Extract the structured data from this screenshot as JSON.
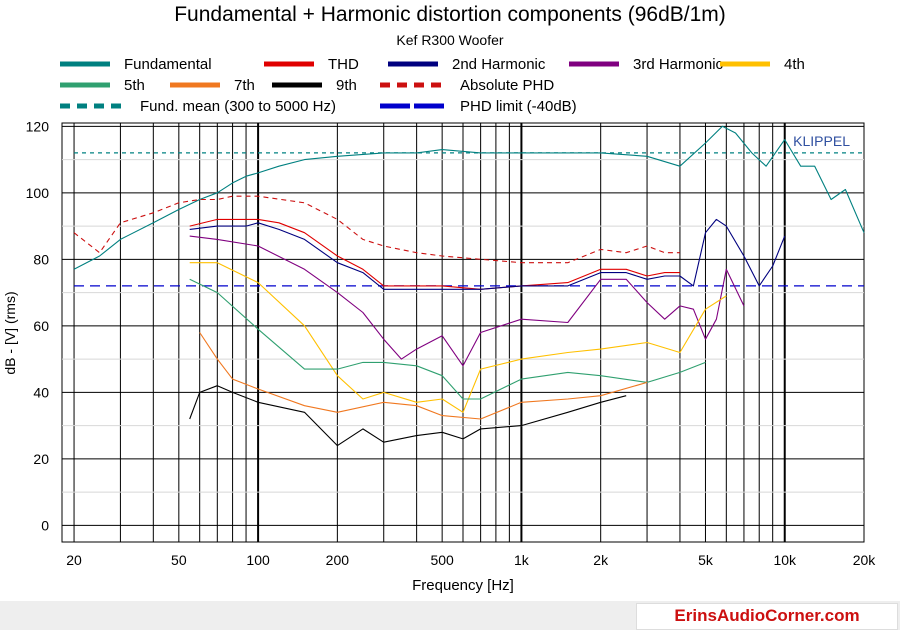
{
  "chart_data": {
    "type": "line",
    "title": "Fundamental + Harmonic distortion components (96dB/1m)",
    "subtitle": "Kef R300 Woofer",
    "xlabel": "Frequency [Hz]",
    "ylabel": "dB - [V] (rms)",
    "xscale": "log",
    "xlim": [
      18,
      20000
    ],
    "ylim": [
      -5,
      121
    ],
    "xticks": [
      {
        "value": 20,
        "label": "20"
      },
      {
        "value": 50,
        "label": "50"
      },
      {
        "value": 100,
        "label": "100"
      },
      {
        "value": 200,
        "label": "200"
      },
      {
        "value": 500,
        "label": "500"
      },
      {
        "value": 1000,
        "label": "1k"
      },
      {
        "value": 2000,
        "label": "2k"
      },
      {
        "value": 5000,
        "label": "5k"
      },
      {
        "value": 10000,
        "label": "10k"
      },
      {
        "value": 20000,
        "label": "20k"
      }
    ],
    "yticks": [
      {
        "value": 0,
        "label": "0"
      },
      {
        "value": 20,
        "label": "20"
      },
      {
        "value": 40,
        "label": "40"
      },
      {
        "value": 60,
        "label": "60"
      },
      {
        "value": 80,
        "label": "80"
      },
      {
        "value": 100,
        "label": "100"
      },
      {
        "value": 120,
        "label": "120"
      }
    ],
    "grid": true,
    "watermark": "KLIPPEL",
    "legend_position": "top",
    "series": [
      {
        "name": "Fundamental",
        "color": "#008080",
        "style": "solid",
        "points": [
          [
            20,
            77
          ],
          [
            25,
            81
          ],
          [
            30,
            86
          ],
          [
            40,
            91
          ],
          [
            50,
            95
          ],
          [
            60,
            98
          ],
          [
            70,
            100
          ],
          [
            80,
            103
          ],
          [
            90,
            105
          ],
          [
            100,
            106
          ],
          [
            120,
            108
          ],
          [
            150,
            110
          ],
          [
            200,
            111
          ],
          [
            300,
            112
          ],
          [
            400,
            112
          ],
          [
            500,
            113
          ],
          [
            700,
            112
          ],
          [
            1000,
            112
          ],
          [
            1500,
            112
          ],
          [
            2000,
            112
          ],
          [
            3000,
            111
          ],
          [
            4000,
            108
          ],
          [
            5000,
            115
          ],
          [
            5800,
            120
          ],
          [
            6500,
            118
          ],
          [
            7500,
            112
          ],
          [
            8500,
            108
          ],
          [
            10000,
            116
          ],
          [
            11500,
            108
          ],
          [
            13000,
            108
          ],
          [
            15000,
            98
          ],
          [
            17000,
            101
          ],
          [
            20000,
            88
          ]
        ]
      },
      {
        "name": "THD",
        "color": "#e00000",
        "style": "solid",
        "points": [
          [
            55,
            90
          ],
          [
            70,
            92
          ],
          [
            90,
            92
          ],
          [
            100,
            92
          ],
          [
            120,
            91
          ],
          [
            150,
            88
          ],
          [
            200,
            81
          ],
          [
            250,
            77
          ],
          [
            300,
            72
          ],
          [
            400,
            72
          ],
          [
            500,
            72
          ],
          [
            700,
            71
          ],
          [
            1000,
            72
          ],
          [
            1500,
            73
          ],
          [
            2000,
            77
          ],
          [
            2500,
            77
          ],
          [
            3000,
            75
          ],
          [
            3500,
            76
          ],
          [
            4000,
            76
          ]
        ]
      },
      {
        "name": "2nd Harmonic",
        "color": "#00007f",
        "style": "solid",
        "points": [
          [
            55,
            89
          ],
          [
            70,
            90
          ],
          [
            90,
            90
          ],
          [
            100,
            91
          ],
          [
            120,
            89
          ],
          [
            150,
            86
          ],
          [
            200,
            79
          ],
          [
            250,
            76
          ],
          [
            300,
            71
          ],
          [
            400,
            71
          ],
          [
            500,
            71
          ],
          [
            700,
            71
          ],
          [
            1000,
            72
          ],
          [
            1500,
            72
          ],
          [
            2000,
            76
          ],
          [
            2500,
            76
          ],
          [
            3000,
            74
          ],
          [
            3500,
            75
          ],
          [
            4000,
            75
          ],
          [
            4500,
            72
          ],
          [
            5000,
            88
          ],
          [
            5500,
            92
          ],
          [
            6000,
            90
          ],
          [
            7000,
            81
          ],
          [
            8000,
            72
          ],
          [
            9000,
            78
          ],
          [
            10000,
            87
          ]
        ]
      },
      {
        "name": "3rd Harmonic",
        "color": "#800080",
        "style": "solid",
        "points": [
          [
            55,
            87
          ],
          [
            70,
            86
          ],
          [
            100,
            84
          ],
          [
            150,
            77
          ],
          [
            200,
            70
          ],
          [
            250,
            64
          ],
          [
            300,
            56
          ],
          [
            350,
            50
          ],
          [
            400,
            53
          ],
          [
            500,
            57
          ],
          [
            600,
            48
          ],
          [
            700,
            58
          ],
          [
            1000,
            62
          ],
          [
            1500,
            61
          ],
          [
            2000,
            74
          ],
          [
            2500,
            74
          ],
          [
            3000,
            67
          ],
          [
            3500,
            62
          ],
          [
            4000,
            66
          ],
          [
            4500,
            65
          ],
          [
            5000,
            56
          ],
          [
            5500,
            62
          ],
          [
            6000,
            77
          ],
          [
            7000,
            66
          ]
        ]
      },
      {
        "name": "4th",
        "color": "#ffc000",
        "style": "solid",
        "points": [
          [
            55,
            79
          ],
          [
            70,
            79
          ],
          [
            100,
            73
          ],
          [
            150,
            60
          ],
          [
            200,
            45
          ],
          [
            250,
            38
          ],
          [
            300,
            40
          ],
          [
            400,
            37
          ],
          [
            500,
            38
          ],
          [
            600,
            34
          ],
          [
            700,
            47
          ],
          [
            1000,
            50
          ],
          [
            1500,
            52
          ],
          [
            2000,
            53
          ],
          [
            3000,
            55
          ],
          [
            4000,
            52
          ],
          [
            5000,
            65
          ],
          [
            6000,
            69
          ]
        ]
      },
      {
        "name": "5th",
        "color": "#30a070",
        "style": "solid",
        "points": [
          [
            55,
            74
          ],
          [
            70,
            70
          ],
          [
            100,
            59
          ],
          [
            150,
            47
          ],
          [
            200,
            47
          ],
          [
            250,
            49
          ],
          [
            300,
            49
          ],
          [
            400,
            48
          ],
          [
            500,
            45
          ],
          [
            600,
            38
          ],
          [
            700,
            38
          ],
          [
            1000,
            44
          ],
          [
            1500,
            46
          ],
          [
            2000,
            45
          ],
          [
            3000,
            43
          ],
          [
            4000,
            46
          ],
          [
            5000,
            49
          ]
        ]
      },
      {
        "name": "7th",
        "color": "#f07820",
        "style": "solid",
        "points": [
          [
            60,
            58
          ],
          [
            70,
            50
          ],
          [
            80,
            44
          ],
          [
            100,
            41
          ],
          [
            150,
            36
          ],
          [
            200,
            34
          ],
          [
            300,
            37
          ],
          [
            400,
            36
          ],
          [
            500,
            33
          ],
          [
            700,
            32
          ],
          [
            1000,
            37
          ],
          [
            1500,
            38
          ],
          [
            2000,
            39
          ],
          [
            3000,
            43
          ]
        ]
      },
      {
        "name": "9th",
        "color": "#000000",
        "style": "solid",
        "points": [
          [
            55,
            32
          ],
          [
            60,
            40
          ],
          [
            70,
            42
          ],
          [
            80,
            40
          ],
          [
            100,
            37
          ],
          [
            150,
            34
          ],
          [
            200,
            24
          ],
          [
            250,
            29
          ],
          [
            300,
            25
          ],
          [
            400,
            27
          ],
          [
            500,
            28
          ],
          [
            600,
            26
          ],
          [
            700,
            29
          ],
          [
            1000,
            30
          ],
          [
            1500,
            34
          ],
          [
            2000,
            37
          ],
          [
            2500,
            39
          ]
        ]
      },
      {
        "name": "Absolute PHD",
        "color": "#cc1010",
        "style": "dashed",
        "points": [
          [
            20,
            88
          ],
          [
            25,
            82
          ],
          [
            30,
            91
          ],
          [
            40,
            94
          ],
          [
            50,
            97
          ],
          [
            60,
            98
          ],
          [
            70,
            98
          ],
          [
            80,
            99
          ],
          [
            100,
            99
          ],
          [
            150,
            97
          ],
          [
            200,
            92
          ],
          [
            250,
            86
          ],
          [
            300,
            84
          ],
          [
            400,
            82
          ],
          [
            500,
            81
          ],
          [
            700,
            80
          ],
          [
            1000,
            79
          ],
          [
            1500,
            79
          ],
          [
            2000,
            83
          ],
          [
            2500,
            82
          ],
          [
            3000,
            84
          ],
          [
            3500,
            82
          ],
          [
            4000,
            82
          ]
        ]
      },
      {
        "name": "Fund. mean (300 to 5000 Hz)",
        "color": "#008080",
        "style": "dashed",
        "points": [
          [
            20,
            112
          ],
          [
            20000,
            112
          ]
        ]
      },
      {
        "name": "PHD limit (-40dB)",
        "color": "#0000cc",
        "style": "dashed",
        "points": [
          [
            20,
            72
          ],
          [
            20000,
            72
          ]
        ]
      }
    ]
  },
  "footer": {
    "brand": "ErinsAudioCorner.com"
  }
}
